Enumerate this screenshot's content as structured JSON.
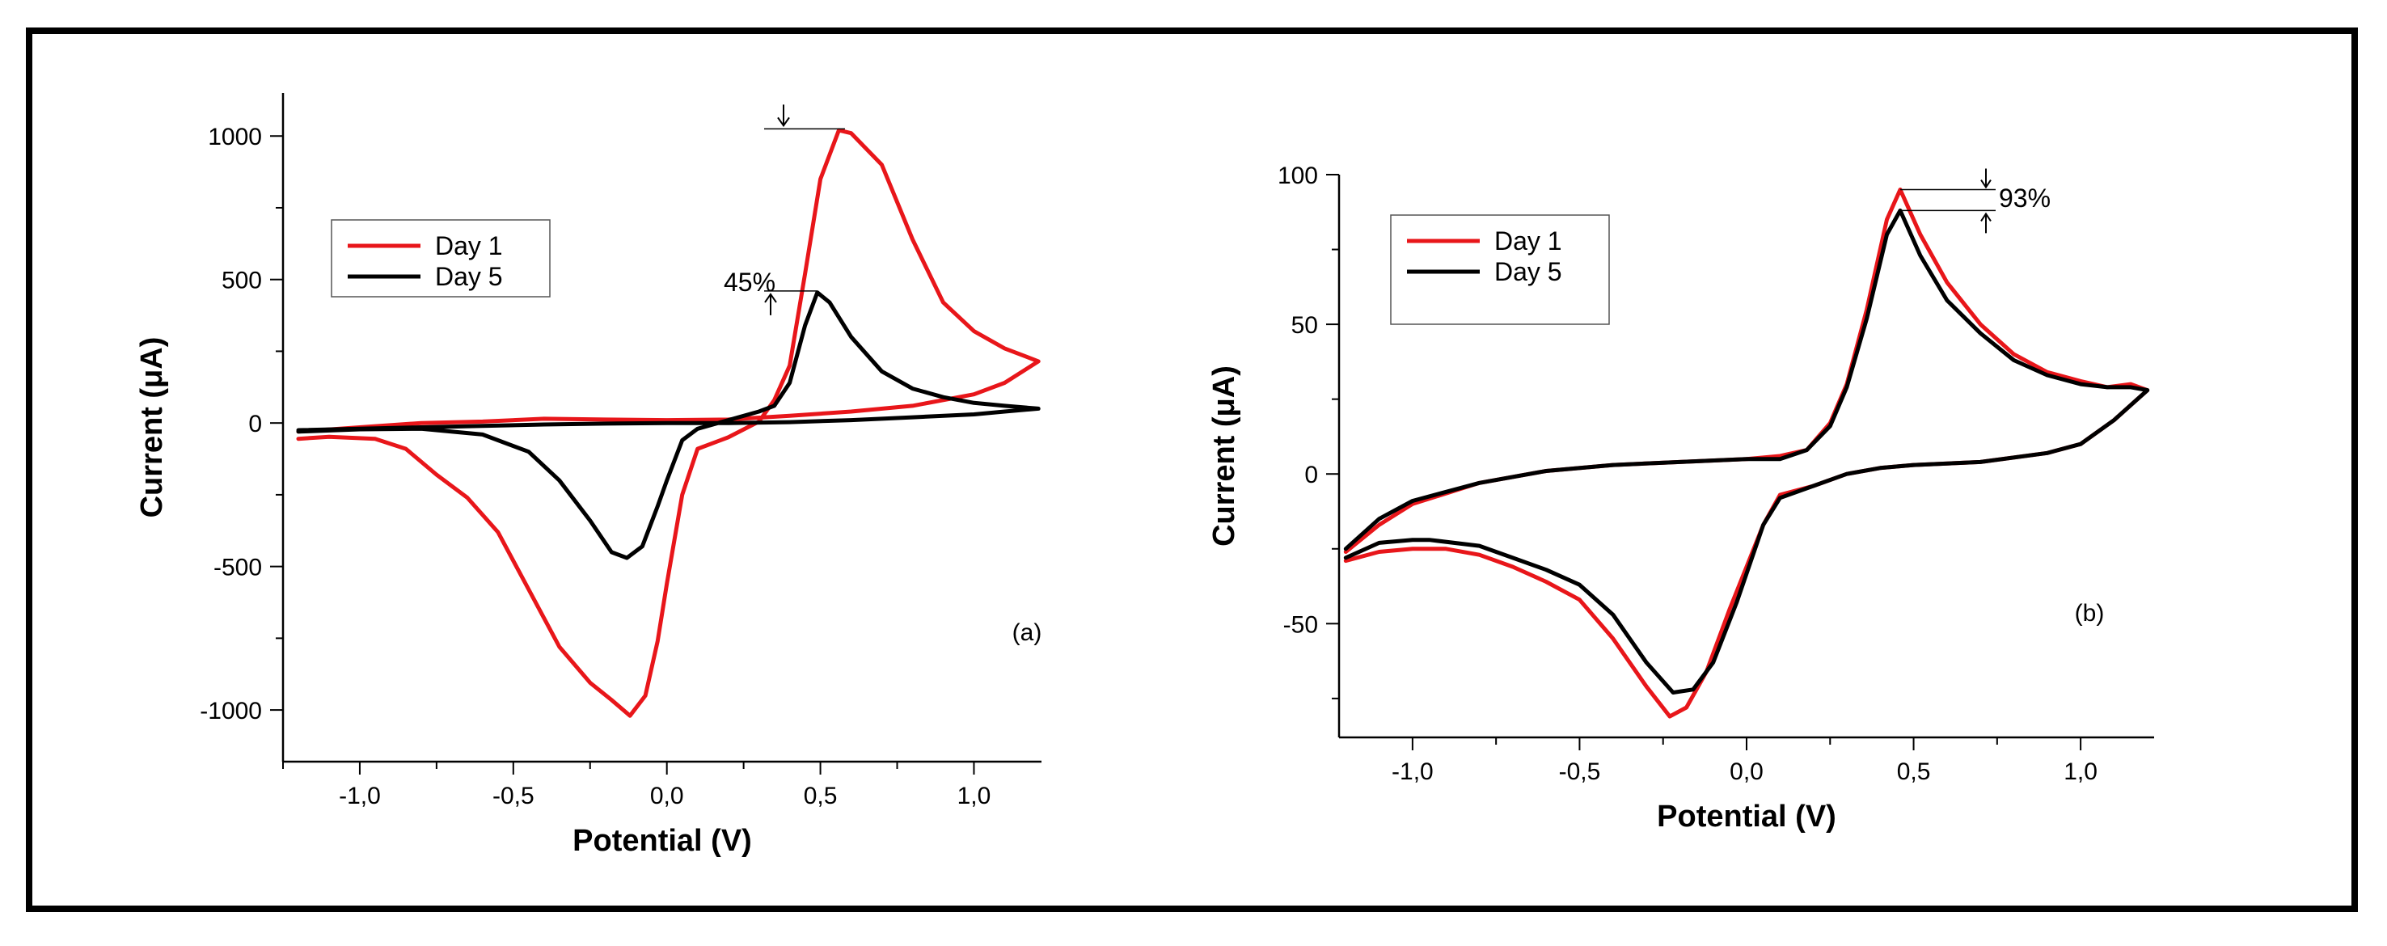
{
  "figure": {
    "frame_color": "#000000",
    "series_colors": {
      "Day 1": "#e8161a",
      "Day 5": "#000000"
    }
  },
  "chart_data": [
    {
      "type": "line",
      "panel_label": "(a)",
      "xlabel": "Potential (V)",
      "ylabel": "Current (μA)",
      "xlim": [
        -1.25,
        1.22
      ],
      "ylim": [
        -1180,
        1150
      ],
      "xticks": [
        -1.0,
        -0.5,
        0.0,
        0.5,
        1.0
      ],
      "xtick_labels": [
        "-1,0",
        "-0,5",
        "0,0",
        "0,5",
        "1,0"
      ],
      "yticks": [
        -1000,
        -500,
        0,
        500,
        1000
      ],
      "ytick_labels": [
        "-1000",
        "-500",
        "0",
        "500",
        "1000"
      ],
      "legend": {
        "position": "top-left",
        "entries": [
          "Day 1",
          "Day 5"
        ]
      },
      "annotation": {
        "text": "45%",
        "upper_level": 1025,
        "lower_level": 460
      },
      "series": [
        {
          "name": "Day 1",
          "color": "#e8161a",
          "points": [
            [
              -1.2,
              -55
            ],
            [
              -1.1,
              -48
            ],
            [
              -0.95,
              -55
            ],
            [
              -0.85,
              -90
            ],
            [
              -0.75,
              -180
            ],
            [
              -0.65,
              -260
            ],
            [
              -0.55,
              -380
            ],
            [
              -0.45,
              -580
            ],
            [
              -0.35,
              -780
            ],
            [
              -0.25,
              -905
            ],
            [
              -0.18,
              -965
            ],
            [
              -0.12,
              -1020
            ],
            [
              -0.07,
              -950
            ],
            [
              -0.03,
              -760
            ],
            [
              0.0,
              -560
            ],
            [
              0.05,
              -250
            ],
            [
              0.1,
              -90
            ],
            [
              0.2,
              -50
            ],
            [
              0.3,
              5
            ],
            [
              0.35,
              80
            ],
            [
              0.4,
              200
            ],
            [
              0.45,
              520
            ],
            [
              0.5,
              850
            ],
            [
              0.56,
              1020
            ],
            [
              0.6,
              1010
            ],
            [
              0.7,
              900
            ],
            [
              0.8,
              640
            ],
            [
              0.9,
              420
            ],
            [
              1.0,
              320
            ],
            [
              1.1,
              260
            ],
            [
              1.21,
              215
            ],
            [
              1.1,
              140
            ],
            [
              1.0,
              100
            ],
            [
              0.8,
              60
            ],
            [
              0.6,
              40
            ],
            [
              0.4,
              25
            ],
            [
              0.2,
              12
            ],
            [
              0.0,
              10
            ],
            [
              -0.2,
              12
            ],
            [
              -0.4,
              15
            ],
            [
              -0.6,
              5
            ],
            [
              -0.8,
              0
            ],
            [
              -1.0,
              -15
            ],
            [
              -1.2,
              -30
            ]
          ]
        },
        {
          "name": "Day 5",
          "color": "#000000",
          "points": [
            [
              -1.2,
              -30
            ],
            [
              -1.0,
              -22
            ],
            [
              -0.8,
              -20
            ],
            [
              -0.6,
              -40
            ],
            [
              -0.45,
              -100
            ],
            [
              -0.35,
              -200
            ],
            [
              -0.25,
              -340
            ],
            [
              -0.18,
              -450
            ],
            [
              -0.13,
              -470
            ],
            [
              -0.08,
              -430
            ],
            [
              -0.03,
              -290
            ],
            [
              0.0,
              -200
            ],
            [
              0.05,
              -60
            ],
            [
              0.1,
              -20
            ],
            [
              0.2,
              10
            ],
            [
              0.3,
              40
            ],
            [
              0.35,
              60
            ],
            [
              0.4,
              140
            ],
            [
              0.45,
              340
            ],
            [
              0.49,
              455
            ],
            [
              0.53,
              420
            ],
            [
              0.6,
              300
            ],
            [
              0.7,
              180
            ],
            [
              0.8,
              120
            ],
            [
              0.9,
              90
            ],
            [
              1.0,
              70
            ],
            [
              1.1,
              60
            ],
            [
              1.21,
              50
            ],
            [
              1.1,
              40
            ],
            [
              1.0,
              30
            ],
            [
              0.8,
              20
            ],
            [
              0.6,
              10
            ],
            [
              0.4,
              3
            ],
            [
              0.2,
              0
            ],
            [
              0.0,
              0
            ],
            [
              -0.2,
              -2
            ],
            [
              -0.4,
              -5
            ],
            [
              -0.6,
              -10
            ],
            [
              -0.8,
              -15
            ],
            [
              -1.0,
              -20
            ],
            [
              -1.2,
              -25
            ]
          ]
        }
      ]
    },
    {
      "type": "line",
      "panel_label": "(b)",
      "xlabel": "Potential (V)",
      "ylabel": "Current (μA)",
      "xlim": [
        -1.22,
        1.22
      ],
      "ylim": [
        -88,
        100
      ],
      "xticks": [
        -1.0,
        -0.5,
        0.0,
        0.5,
        1.0
      ],
      "xtick_labels": [
        "-1,0",
        "-0,5",
        "0,0",
        "0,5",
        "1,0"
      ],
      "yticks": [
        -50,
        0,
        50,
        100
      ],
      "ytick_labels": [
        "-50",
        "0",
        "50",
        "100"
      ],
      "legend": {
        "position": "top-left",
        "entries": [
          "Day 1",
          "Day 5"
        ]
      },
      "annotation": {
        "text": "93%",
        "upper_level": 95,
        "lower_level": 88
      },
      "series": [
        {
          "name": "Day 1",
          "color": "#e8161a",
          "points": [
            [
              -1.2,
              -29
            ],
            [
              -1.1,
              -26
            ],
            [
              -1.0,
              -25
            ],
            [
              -0.9,
              -25
            ],
            [
              -0.8,
              -27
            ],
            [
              -0.7,
              -31
            ],
            [
              -0.6,
              -36
            ],
            [
              -0.5,
              -42
            ],
            [
              -0.4,
              -55
            ],
            [
              -0.3,
              -71
            ],
            [
              -0.23,
              -81
            ],
            [
              -0.18,
              -78
            ],
            [
              -0.12,
              -66
            ],
            [
              -0.05,
              -45
            ],
            [
              0.05,
              -17
            ],
            [
              0.1,
              -7
            ],
            [
              0.2,
              -4
            ],
            [
              0.3,
              0
            ],
            [
              0.4,
              2
            ],
            [
              0.5,
              3
            ],
            [
              0.7,
              4
            ],
            [
              0.9,
              7
            ],
            [
              1.0,
              10
            ],
            [
              1.1,
              18
            ],
            [
              1.2,
              28
            ],
            [
              1.15,
              30
            ],
            [
              1.08,
              29
            ],
            [
              1.0,
              31
            ],
            [
              0.9,
              34
            ],
            [
              0.8,
              40
            ],
            [
              0.7,
              50
            ],
            [
              0.6,
              64
            ],
            [
              0.52,
              80
            ],
            [
              0.46,
              95
            ],
            [
              0.42,
              85
            ],
            [
              0.36,
              55
            ],
            [
              0.3,
              30
            ],
            [
              0.25,
              17
            ],
            [
              0.18,
              8
            ],
            [
              0.1,
              6
            ],
            [
              0.0,
              5
            ],
            [
              -0.2,
              4
            ],
            [
              -0.4,
              3
            ],
            [
              -0.6,
              1
            ],
            [
              -0.8,
              -3
            ],
            [
              -1.0,
              -10
            ],
            [
              -1.1,
              -17
            ],
            [
              -1.2,
              -26
            ]
          ]
        },
        {
          "name": "Day 5",
          "color": "#000000",
          "points": [
            [
              -1.2,
              -28
            ],
            [
              -1.1,
              -23
            ],
            [
              -1.0,
              -22
            ],
            [
              -0.95,
              -22
            ],
            [
              -0.8,
              -24
            ],
            [
              -0.7,
              -28
            ],
            [
              -0.6,
              -32
            ],
            [
              -0.5,
              -37
            ],
            [
              -0.4,
              -47
            ],
            [
              -0.3,
              -63
            ],
            [
              -0.22,
              -73
            ],
            [
              -0.16,
              -72
            ],
            [
              -0.1,
              -63
            ],
            [
              -0.03,
              -43
            ],
            [
              0.05,
              -17
            ],
            [
              0.1,
              -8
            ],
            [
              0.2,
              -4
            ],
            [
              0.3,
              0
            ],
            [
              0.4,
              2
            ],
            [
              0.5,
              3
            ],
            [
              0.7,
              4
            ],
            [
              0.9,
              7
            ],
            [
              1.0,
              10
            ],
            [
              1.1,
              18
            ],
            [
              1.2,
              28
            ],
            [
              1.15,
              29
            ],
            [
              1.08,
              29
            ],
            [
              1.0,
              30
            ],
            [
              0.9,
              33
            ],
            [
              0.8,
              38
            ],
            [
              0.7,
              47
            ],
            [
              0.6,
              58
            ],
            [
              0.52,
              73
            ],
            [
              0.46,
              88
            ],
            [
              0.42,
              80
            ],
            [
              0.36,
              52
            ],
            [
              0.3,
              29
            ],
            [
              0.25,
              16
            ],
            [
              0.18,
              8
            ],
            [
              0.1,
              5
            ],
            [
              0.0,
              5
            ],
            [
              -0.2,
              4
            ],
            [
              -0.4,
              3
            ],
            [
              -0.6,
              1
            ],
            [
              -0.8,
              -3
            ],
            [
              -1.0,
              -9
            ],
            [
              -1.1,
              -15
            ],
            [
              -1.2,
              -25
            ]
          ]
        }
      ]
    }
  ]
}
